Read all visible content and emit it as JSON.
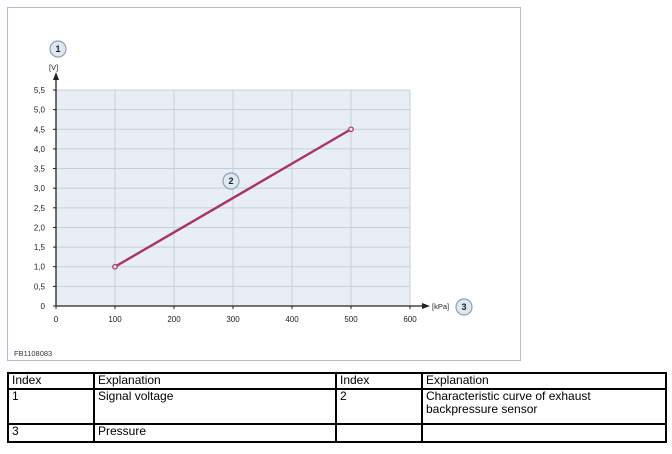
{
  "chart_data": {
    "type": "line",
    "x_unit": "[kPa]",
    "y_unit": "[V]",
    "x_ticks": [
      "0",
      "100",
      "200",
      "300",
      "400",
      "500",
      "600"
    ],
    "y_ticks": [
      "0",
      "0,5",
      "1,0",
      "1,5",
      "2,0",
      "2,5",
      "3,0",
      "3,5",
      "4,0",
      "4,5",
      "5,0",
      "5,5"
    ],
    "xlim": [
      0,
      600
    ],
    "ylim": [
      0,
      5.5
    ],
    "grid": true,
    "series": [
      {
        "x": [
          100,
          500
        ],
        "y": [
          1.0,
          4.5
        ],
        "color": "#a8336a"
      }
    ],
    "callouts": [
      "1",
      "2",
      "3"
    ],
    "figure_id": "FB1108083"
  },
  "colors": {
    "plot_background": "#e9eef4",
    "grid": "#c4cfda",
    "line": "#a8336a",
    "frame": "#aebfd0",
    "callout_fill": "#dfe7f0",
    "callout_stroke": "#8ba0b8"
  },
  "legend_table": {
    "headers": [
      "Index",
      "Explanation",
      "Index",
      "Explanation"
    ],
    "rows": [
      [
        "1",
        "Signal voltage",
        "2",
        "Characteristic curve of exhaust backpressure sensor"
      ],
      [
        "3",
        "Pressure",
        "",
        ""
      ]
    ]
  }
}
